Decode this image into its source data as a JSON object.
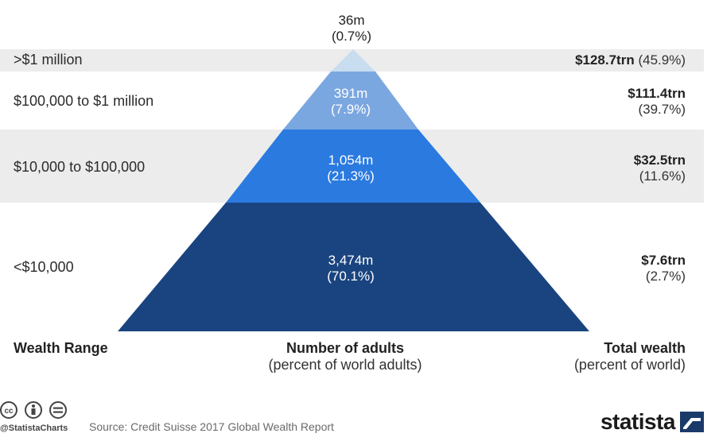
{
  "chart_data": {
    "type": "pyramid",
    "title": "",
    "tiers": [
      {
        "range": ">$1 million",
        "adults": "36m",
        "adults_pct": "(0.7%)",
        "wealth": "$128.7trn",
        "wealth_pct": "(45.9%)",
        "adults_m": 36,
        "adults_share": 0.7,
        "wealth_trn": 128.7,
        "wealth_share": 45.9,
        "color": "#c9ddf0"
      },
      {
        "range": "$100,000 to $1 million",
        "adults": "391m",
        "adults_pct": "(7.9%)",
        "wealth": "$111.4trn",
        "wealth_pct": "(39.7%)",
        "adults_m": 391,
        "adults_share": 7.9,
        "wealth_trn": 111.4,
        "wealth_share": 39.7,
        "color": "#7ba7e0"
      },
      {
        "range": "$10,000 to $100,000",
        "adults": "1,054m",
        "adults_pct": "(21.3%)",
        "wealth": "$32.5trn",
        "wealth_pct": "(11.6%)",
        "adults_m": 1054,
        "adults_share": 21.3,
        "wealth_trn": 32.5,
        "wealth_share": 11.6,
        "color": "#2a7ae0"
      },
      {
        "range": "<$10,000",
        "adults": "3,474m",
        "adults_pct": "(70.1%)",
        "wealth": "$7.6trn",
        "wealth_pct": "(2.7%)",
        "adults_m": 3474,
        "adults_share": 70.1,
        "wealth_trn": 7.6,
        "wealth_share": 2.7,
        "color": "#1a4480"
      }
    ],
    "headers": {
      "range": "Wealth Range",
      "adults": "Number of adults",
      "adults_sub": "(percent of world adults)",
      "wealth": "Total wealth",
      "wealth_sub": "(percent of world)"
    }
  },
  "footer": {
    "source": "Source: Credit Suisse 2017 Global Wealth Report",
    "handle": "@StatistaCharts",
    "brand": "statista"
  },
  "colors": {
    "band": "#ececec",
    "brand_icon": "#1a3a6a"
  }
}
